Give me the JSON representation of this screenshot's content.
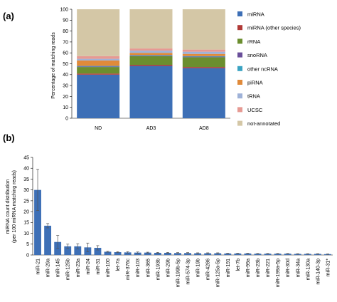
{
  "chart_data": [
    {
      "panel_label": "(a)",
      "type": "bar",
      "stacked": true,
      "categories": [
        "ND",
        "AD3",
        "AD8"
      ],
      "ylabel": "Percentage of matching reads",
      "ylim": [
        0,
        100
      ],
      "yticks": [
        0,
        10,
        20,
        30,
        40,
        50,
        60,
        70,
        80,
        90,
        100
      ],
      "legend_position": "right",
      "series": [
        {
          "name": "miRNA",
          "color": "#3d6fb6",
          "values": [
            40,
            48,
            46
          ]
        },
        {
          "name": "miRNA (other species)",
          "color": "#b13a37",
          "values": [
            1,
            1,
            1
          ]
        },
        {
          "name": "rRNA",
          "color": "#6b8e2f",
          "values": [
            6,
            8,
            9
          ]
        },
        {
          "name": "snoRNA",
          "color": "#6a4f9a",
          "values": [
            0.5,
            0.5,
            0.5
          ]
        },
        {
          "name": "other ncRNA",
          "color": "#3aa3c2",
          "values": [
            0.5,
            0.5,
            0.5
          ]
        },
        {
          "name": "piRNA",
          "color": "#e08a3a",
          "values": [
            5,
            2,
            2
          ]
        },
        {
          "name": "tRNA",
          "color": "#9fb2d8",
          "values": [
            1.5,
            2,
            2
          ]
        },
        {
          "name": "UCSC",
          "color": "#e69a93",
          "values": [
            2.5,
            2,
            2
          ]
        },
        {
          "name": "not-annotated",
          "color": "#d4c7a6",
          "values": [
            43,
            36,
            37
          ]
        }
      ]
    },
    {
      "panel_label": "(b)",
      "type": "bar",
      "ylabel_line1": "miRNA count distribution",
      "ylabel_line2": "(per 100 miRNA matching reads)",
      "ylim": [
        0,
        45
      ],
      "yticks": [
        0,
        5,
        10,
        15,
        20,
        25,
        30,
        35,
        40,
        45
      ],
      "color": "#3d6fb6",
      "categories": [
        "miR-21",
        "miR-29a",
        "miR-145",
        "miR-125b",
        "miR-23a",
        "miR-24",
        "miR-31",
        "miR-100",
        "let-7a",
        "miR-376c",
        "miR-103",
        "miR-365",
        "miR-193b",
        "miR-29b",
        "miR-199b-5p",
        "miR-574-3p",
        "miR-19b",
        "miR-4286",
        "miR-125a-5p",
        "miR-191",
        "let-7b",
        "miR-99a",
        "miR-23b",
        "miR-221",
        "miR-199a-5p",
        "miR-30d",
        "miR-34a",
        "miR-130a",
        "miR-140-3p",
        "miR-31*"
      ],
      "values": [
        30,
        13.5,
        6,
        4,
        4,
        3.5,
        3.3,
        1.5,
        1.3,
        1.2,
        1.1,
        1.1,
        1.0,
        1.0,
        0.9,
        0.9,
        0.8,
        0.8,
        0.8,
        0.7,
        0.7,
        0.7,
        0.6,
        0.6,
        0.6,
        0.6,
        0.5,
        0.5,
        0.5,
        0.4
      ],
      "errors": [
        9.5,
        1.0,
        3.0,
        1.0,
        1.2,
        2.0,
        1.0,
        0.2,
        0.2,
        0.3,
        0.3,
        0.2,
        0.2,
        0.2,
        0.2,
        0.2,
        0.2,
        0.2,
        0.2,
        0.1,
        0.1,
        0.1,
        0.1,
        0.1,
        0.1,
        0.1,
        0.1,
        0.1,
        0.1,
        0.1
      ]
    }
  ]
}
